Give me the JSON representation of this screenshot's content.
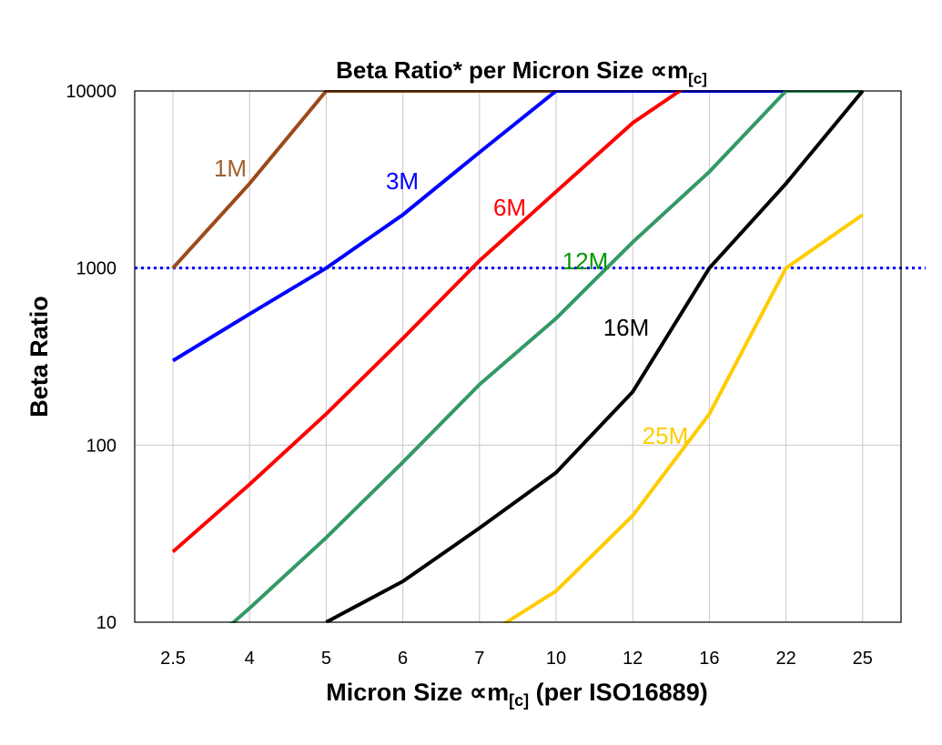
{
  "chart_data": {
    "type": "line",
    "title": "Beta Ratio* per Micron Size ∝m",
    "title_sub": "[c]",
    "xlabel": "Micron Size ∝m",
    "xlabel_sub": "[c]",
    "xlabel_suffix": " (per ISO16889)",
    "ylabel": "Beta Ratio",
    "y_scale": "log",
    "ylim": [
      10,
      10000
    ],
    "y_ticks": [
      "10",
      "100",
      "1000",
      "10000"
    ],
    "categories": [
      "2.5",
      "4",
      "5",
      "6",
      "7",
      "10",
      "12",
      "16",
      "22",
      "25"
    ],
    "grid": "vertical and horizontal (light gray)",
    "reference_line": {
      "value": 1000,
      "style": "dotted",
      "color": "#0000FF"
    },
    "series": [
      {
        "name": "1M",
        "color": "#9C4A1A",
        "label_color": "#A0602D",
        "values": [
          1000,
          3000,
          10000,
          10000,
          10000,
          10000,
          10000,
          10000,
          10000,
          10000
        ]
      },
      {
        "name": "3M",
        "color": "#0000FF",
        "label_color": "#0000FF",
        "values": [
          300,
          550,
          1000,
          2000,
          4500,
          10000,
          10000,
          10000,
          10000,
          10000
        ]
      },
      {
        "name": "6M",
        "color": "#FF0000",
        "label_color": "#FF0000",
        "values": [
          25,
          60,
          150,
          400,
          1100,
          2700,
          6600,
          13000,
          13000,
          13000
        ]
      },
      {
        "name": "12M",
        "color": "#339966",
        "label_color": "#009900",
        "values": [
          5,
          12,
          30,
          80,
          220,
          520,
          1400,
          3500,
          10000,
          10000
        ]
      },
      {
        "name": "16M",
        "color": "#000000",
        "label_color": "#000000",
        "values": [
          null,
          null,
          10,
          17,
          34,
          70,
          200,
          1000,
          3000,
          10000
        ]
      },
      {
        "name": "25M",
        "color": "#FFCC00",
        "label_color": "#FFCC00",
        "values": [
          null,
          null,
          null,
          null,
          8,
          15,
          40,
          150,
          1000,
          2000
        ]
      }
    ]
  }
}
